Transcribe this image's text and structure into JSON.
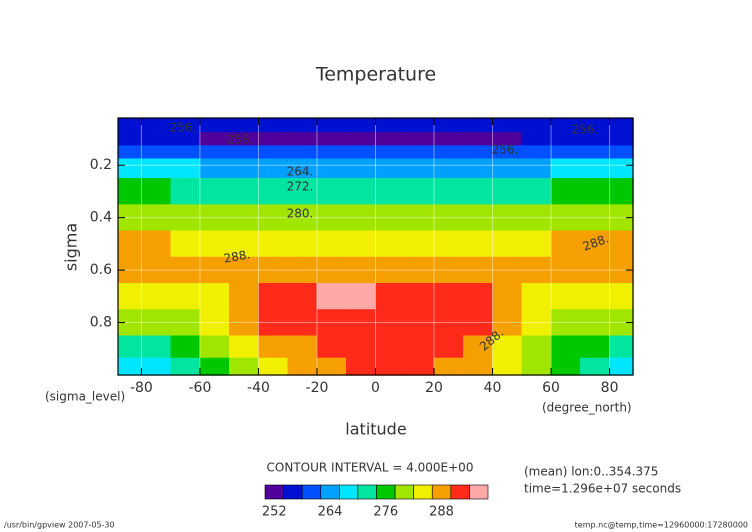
{
  "chart_data": {
    "type": "contour",
    "title": "Temperature",
    "x_label": "latitude",
    "y_label": "sigma",
    "x_unit": "(degree_north)",
    "y_unit": "(sigma_level)",
    "xlim": [
      -88,
      88
    ],
    "ylim": [
      1.0,
      0.02
    ],
    "xticks": [
      -80,
      -60,
      -40,
      -20,
      0,
      20,
      40,
      60,
      80
    ],
    "yticks": [
      0.2,
      0.4,
      0.6,
      0.8
    ],
    "grid": true,
    "x": [
      -85,
      -75,
      -65,
      -55,
      -45,
      -35,
      -25,
      -15,
      -5,
      5,
      15,
      25,
      35,
      45,
      55,
      65,
      75,
      85
    ],
    "y": [
      0.05,
      0.1,
      0.15,
      0.2,
      0.3,
      0.4,
      0.5,
      0.6,
      0.7,
      0.8,
      0.9,
      0.97
    ],
    "z": [
      [
        256,
        255,
        255,
        255,
        255,
        255,
        255,
        255,
        255,
        255,
        255,
        255,
        255,
        255,
        255,
        255,
        256,
        256
      ],
      [
        255,
        254,
        254,
        253,
        253,
        252,
        252,
        252,
        252,
        252,
        252,
        252,
        253,
        253,
        254,
        254,
        255,
        255
      ],
      [
        260,
        259,
        259,
        258,
        258,
        258,
        258,
        258,
        258,
        258,
        258,
        258,
        258,
        258,
        259,
        259,
        260,
        260
      ],
      [
        266,
        266,
        266,
        265,
        265,
        265,
        265,
        265,
        265,
        265,
        265,
        265,
        265,
        265,
        265,
        266,
        266,
        266
      ],
      [
        274,
        274,
        273,
        273,
        273,
        272,
        272,
        272,
        272,
        272,
        272,
        272,
        273,
        273,
        273,
        274,
        274,
        274
      ],
      [
        281,
        281,
        281,
        280,
        280,
        280,
        280,
        280,
        280,
        280,
        280,
        280,
        280,
        280,
        281,
        281,
        281,
        281
      ],
      [
        287,
        286,
        285,
        285,
        285,
        285,
        285,
        285,
        285,
        285,
        285,
        285,
        285,
        285,
        285,
        286,
        286,
        287
      ],
      [
        288,
        287,
        286,
        287,
        288,
        289,
        289,
        289,
        289,
        289,
        289,
        289,
        289,
        288,
        287,
        286,
        287,
        288
      ],
      [
        284,
        283,
        283,
        285,
        289,
        291,
        293,
        295,
        294,
        293,
        292,
        291,
        290,
        289,
        285,
        283,
        283,
        284
      ],
      [
        278,
        279,
        280,
        282,
        287,
        290,
        291,
        292,
        292,
        292,
        292,
        291,
        290,
        287,
        284,
        281,
        279,
        278
      ],
      [
        272,
        273,
        275,
        278,
        282,
        286,
        289,
        290,
        290,
        290,
        290,
        290,
        288,
        285,
        281,
        277,
        274,
        272
      ],
      [
        268,
        269,
        271,
        274,
        279,
        284,
        287,
        289,
        290,
        290,
        290,
        289,
        287,
        283,
        279,
        275,
        271,
        269
      ]
    ],
    "contour_labels": [
      "256.",
      "256.",
      "256.",
      "256.",
      "264.",
      "272.",
      "280.",
      "288.",
      "288.",
      "288."
    ],
    "colorbar": {
      "title": "CONTOUR INTERVAL = 4.000E+00",
      "levels": [
        250,
        254,
        258,
        262,
        266,
        270,
        274,
        278,
        282,
        286,
        290,
        294,
        298
      ],
      "colors": [
        "#50009b",
        "#0010d0",
        "#0050ff",
        "#00a0ff",
        "#00e6ff",
        "#00e6a0",
        "#00c800",
        "#a0e600",
        "#f0f000",
        "#f5a000",
        "#ff2a1a",
        "#ffa8a8"
      ],
      "ticks": [
        252,
        264,
        276,
        288
      ]
    },
    "notes": [
      "(mean) lon:0..354.375",
      "time=1.296e+07 seconds"
    ],
    "footer_left": "/usr/bin/gpview  2007-05-30",
    "footer_right": "temp.nc@temp,time=12960000:17280000"
  }
}
